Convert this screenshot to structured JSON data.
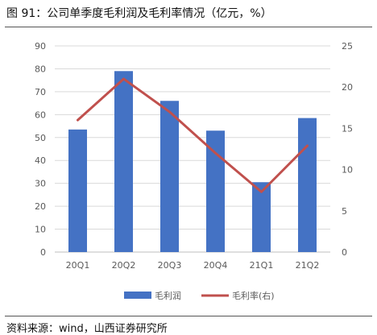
{
  "title": "图 91：公司单季度毛利润及毛利率情况（亿元，%）",
  "source": "资料来源：wind，山西证券研究所",
  "colors": {
    "bar": "#4472C4",
    "line": "#C0504D",
    "grid": "#d9d9d9",
    "axis_text": "#595959"
  },
  "chart_data": {
    "type": "bar",
    "categories": [
      "20Q1",
      "20Q2",
      "20Q3",
      "20Q4",
      "21Q1",
      "21Q2"
    ],
    "series": [
      {
        "name": "毛利润",
        "type": "bar",
        "axis": "left",
        "values": [
          53.5,
          79.0,
          66.0,
          53.0,
          30.5,
          58.5
        ]
      },
      {
        "name": "毛利率(右)",
        "type": "line",
        "axis": "right",
        "values": [
          16.0,
          21.0,
          17.0,
          12.0,
          7.3,
          12.9
        ]
      }
    ],
    "y_left": {
      "min": 0,
      "max": 90,
      "ticks": [
        0,
        10,
        20,
        30,
        40,
        50,
        60,
        70,
        80,
        90
      ]
    },
    "y_right": {
      "min": 0,
      "max": 25,
      "ticks": [
        0,
        5,
        10,
        15,
        20,
        25
      ]
    },
    "grid": true,
    "legend": "bottom"
  }
}
